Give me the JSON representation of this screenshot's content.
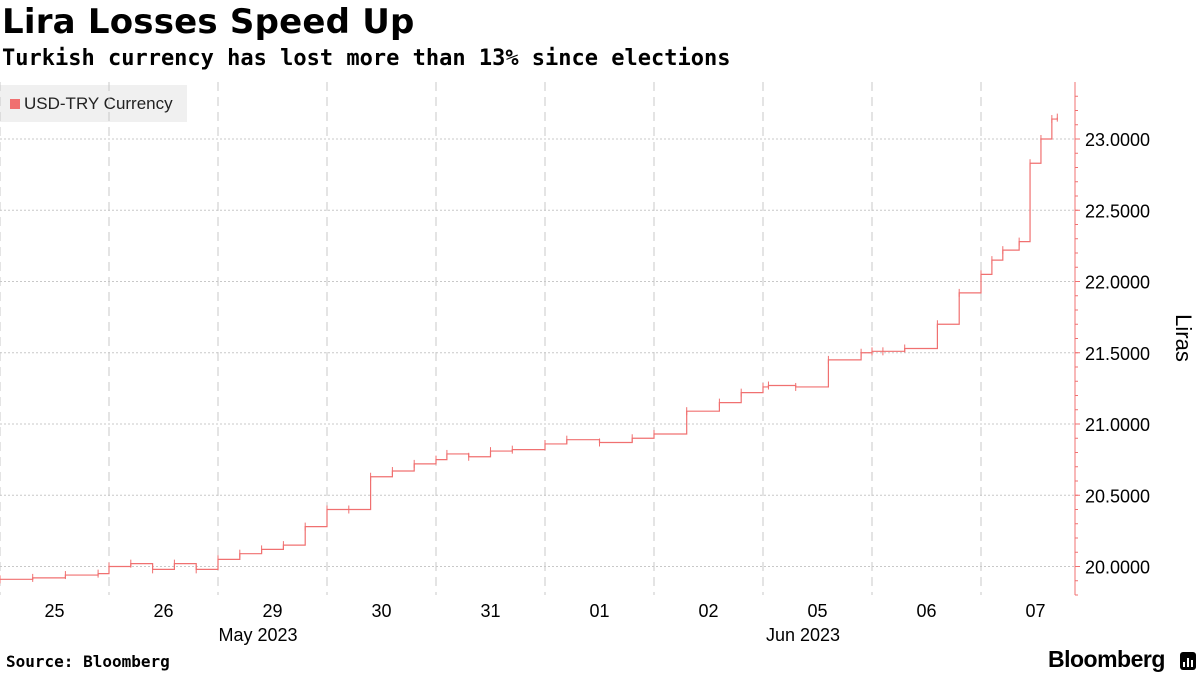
{
  "title": "Lira Losses Speed Up",
  "subtitle": "Turkish currency has lost more than 13% since elections",
  "source": "Source: Bloomberg",
  "brand": "Bloomberg",
  "brand_icon": "bloomberg-terminal-icon",
  "colors": {
    "series": "#f07070",
    "grid": "#c8c8c8",
    "axis": "#f07070",
    "legend_bg": "#f0f0f0"
  },
  "chart_data": {
    "type": "line",
    "title": "Lira Losses Speed Up",
    "ylabel": "Liras",
    "ylim": [
      19.8,
      23.4
    ],
    "yticks": [
      "20.0000",
      "20.5000",
      "21.0000",
      "21.5000",
      "22.0000",
      "22.5000",
      "23.0000"
    ],
    "ytick_values": [
      20.0,
      20.5,
      21.0,
      21.5,
      22.0,
      22.5,
      23.0
    ],
    "y_axis_position": "right",
    "grid": true,
    "legend_position": "top-left",
    "categories": [
      "25",
      "26",
      "29",
      "30",
      "31",
      "01",
      "02",
      "05",
      "06",
      "07"
    ],
    "month_labels": [
      {
        "label": "May 2023",
        "after_category": 2
      },
      {
        "label": "Jun 2023",
        "after_category": 7
      }
    ],
    "series": [
      {
        "name": "USD-TRY Currency",
        "x": [
          0.0,
          0.3,
          0.6,
          0.9,
          1.0,
          1.2,
          1.4,
          1.6,
          1.8,
          2.0,
          2.2,
          2.4,
          2.6,
          2.8,
          3.0,
          3.2,
          3.4,
          3.6,
          3.8,
          4.0,
          4.1,
          4.3,
          4.5,
          4.7,
          5.0,
          5.2,
          5.5,
          5.8,
          6.0,
          6.3,
          6.6,
          6.8,
          7.0,
          7.05,
          7.3,
          7.6,
          7.9,
          8.0,
          8.1,
          8.3,
          8.6,
          8.8,
          9.0,
          9.1,
          9.2,
          9.35,
          9.45,
          9.55,
          9.65,
          9.7
        ],
        "values": [
          19.91,
          19.92,
          19.94,
          19.95,
          20.0,
          20.02,
          19.98,
          20.02,
          19.98,
          20.05,
          20.09,
          20.12,
          20.15,
          20.28,
          20.4,
          20.4,
          20.63,
          20.67,
          20.72,
          20.75,
          20.79,
          20.77,
          20.81,
          20.82,
          20.86,
          20.89,
          20.87,
          20.9,
          20.93,
          21.09,
          21.15,
          21.22,
          21.26,
          21.27,
          21.26,
          21.45,
          21.5,
          21.51,
          21.51,
          21.53,
          21.7,
          21.92,
          22.05,
          22.15,
          22.22,
          22.28,
          22.83,
          23.0,
          23.14,
          23.15
        ]
      }
    ]
  }
}
